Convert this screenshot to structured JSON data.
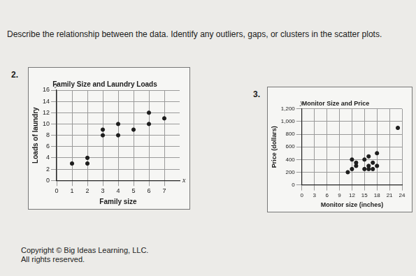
{
  "page": {
    "instruction": "Describe the relationship between the data. Identify any outliers, gaps, or clusters in the scatter plots.",
    "problem_numbers": [
      "2.",
      "3."
    ],
    "footer": [
      "Copyright © Big Ideas Learning, LLC.",
      "All rights reserved."
    ]
  },
  "chart_data": [
    {
      "type": "scatter",
      "title": "Family Size and Laundry Loads",
      "x_label": "Family size",
      "y_label": "Loads of laundry",
      "x": [
        1,
        2,
        2,
        3,
        3,
        4,
        4,
        5,
        6,
        6,
        7
      ],
      "values": [
        3,
        3,
        4,
        8,
        9,
        8,
        10,
        9,
        10,
        12,
        11
      ],
      "color": "#1e1e1e",
      "marker": "circle",
      "xlim": [
        0,
        8
      ],
      "xticks": [
        0,
        1,
        2,
        3,
        4,
        5,
        6,
        7
      ],
      "ylim": [
        0,
        16
      ],
      "yticks": [
        0,
        2,
        4,
        6,
        8,
        10,
        12,
        14,
        16
      ],
      "grid": true,
      "annotations": [
        {
          "text": "x",
          "x": 8,
          "y": 0
        },
        {
          "text": "y",
          "x": 0,
          "y": 16
        }
      ]
    },
    {
      "type": "scatter",
      "title": "Monitor Size and Price",
      "x_label": "Monitor size (inches)",
      "y_label": "Price (dollars)",
      "x": [
        11,
        12,
        12,
        13,
        13,
        15,
        15,
        16,
        16,
        16,
        17,
        17,
        18,
        18,
        23
      ],
      "values": [
        200,
        250,
        400,
        300,
        350,
        250,
        400,
        250,
        300,
        450,
        350,
        250,
        300,
        500,
        900
      ],
      "color": "#1e1e1e",
      "marker": "circle",
      "xlim": [
        0,
        24
      ],
      "xticks": [
        0,
        3,
        6,
        9,
        12,
        15,
        18,
        21,
        24
      ],
      "ylim": [
        0,
        1200
      ],
      "yticks": [
        0,
        200,
        400,
        600,
        800,
        {
          "value": 1000,
          "label": "1,000"
        },
        {
          "value": 1200,
          "label": "1,200"
        }
      ],
      "grid": true,
      "annotations": [
        {
          "text": "y",
          "x": 0,
          "y": 1200
        }
      ]
    }
  ]
}
